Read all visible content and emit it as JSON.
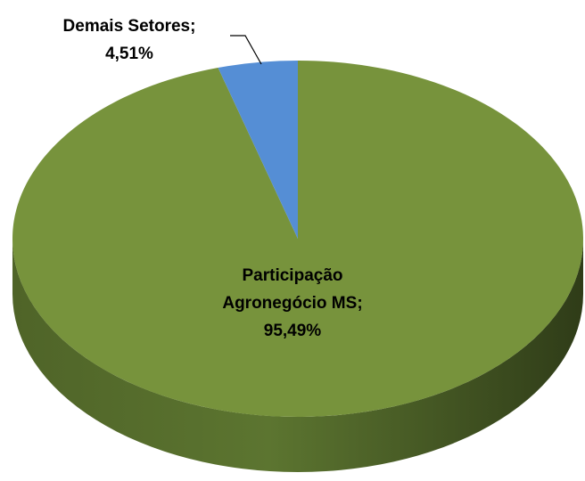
{
  "chart_data": {
    "type": "pie",
    "categories": [
      "Participação Agronegócio MS",
      "Demais Setores"
    ],
    "values": [
      95.49,
      4.51
    ],
    "value_labels": [
      "95,49%",
      "4,51%"
    ],
    "label_separator": ";",
    "colors": [
      "#77933c",
      "#558ed5"
    ]
  }
}
